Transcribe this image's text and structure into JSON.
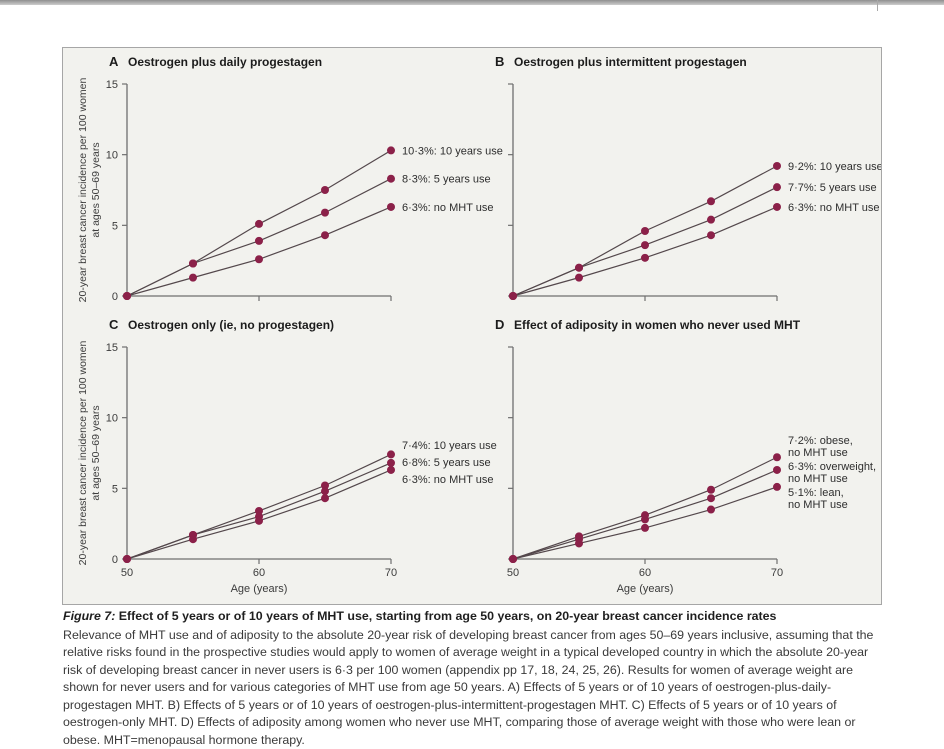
{
  "figure": {
    "x_axis_label": "Age (years)",
    "y_axis_label_lines": [
      "20-year breast cancer incidence per 100 women",
      "at ages 50–69 years"
    ]
  },
  "colors": {
    "marker": "#8b2149",
    "line": "#54484c",
    "axis": "#6f6f6f",
    "tick_text": "#3c3c3c",
    "label_text": "#2e2e2e",
    "title_text": "#1c1c1c",
    "panel_bg": "#f2f2ee"
  },
  "chart_data": [
    {
      "panel": "A",
      "type": "line",
      "title": "Oestrogen plus daily progestagen",
      "x": [
        50,
        55,
        60,
        65,
        70
      ],
      "xlim": [
        50,
        70
      ],
      "ylim": [
        0,
        15
      ],
      "xticks": [
        50,
        60,
        70
      ],
      "yticks": [
        0,
        5,
        10,
        15
      ],
      "grid": false,
      "xlabel": "Age (years)",
      "ylabel": "20-year breast cancer incidence per 100 women at ages 50–69 years",
      "series": [
        {
          "name": "10 years use",
          "label": [
            "10·3%: 10 years use"
          ],
          "values": [
            0,
            2.3,
            5.1,
            7.5,
            10.3
          ]
        },
        {
          "name": "5 years use",
          "label": [
            "8·3%: 5 years use"
          ],
          "values": [
            0,
            2.3,
            3.9,
            5.9,
            8.3
          ]
        },
        {
          "name": "no MHT use",
          "label": [
            "6·3%: no MHT use"
          ],
          "values": [
            0,
            1.3,
            2.6,
            4.3,
            6.3
          ]
        }
      ]
    },
    {
      "panel": "B",
      "type": "line",
      "title": "Oestrogen plus intermittent progestagen",
      "x": [
        50,
        55,
        60,
        65,
        70
      ],
      "xlim": [
        50,
        70
      ],
      "ylim": [
        0,
        15
      ],
      "xticks": [
        50,
        60,
        70
      ],
      "yticks": [
        0,
        5,
        10,
        15
      ],
      "grid": false,
      "xlabel": "Age (years)",
      "ylabel": "20-year breast cancer incidence per 100 women at ages 50–69 years",
      "series": [
        {
          "name": "10 years use",
          "label": [
            "9·2%: 10 years use"
          ],
          "values": [
            0,
            2.0,
            4.6,
            6.7,
            9.2
          ]
        },
        {
          "name": "5 years use",
          "label": [
            "7·7%: 5 years use"
          ],
          "values": [
            0,
            2.0,
            3.6,
            5.4,
            7.7
          ]
        },
        {
          "name": "no MHT use",
          "label": [
            "6·3%: no MHT use"
          ],
          "values": [
            0,
            1.3,
            2.7,
            4.3,
            6.3
          ]
        }
      ]
    },
    {
      "panel": "C",
      "type": "line",
      "title": "Oestrogen only (ie, no progestagen)",
      "x": [
        50,
        55,
        60,
        65,
        70
      ],
      "xlim": [
        50,
        70
      ],
      "ylim": [
        0,
        15
      ],
      "xticks": [
        50,
        60,
        70
      ],
      "yticks": [
        0,
        5,
        10,
        15
      ],
      "grid": false,
      "xlabel": "Age (years)",
      "ylabel": "20-year breast cancer incidence per 100 women at ages 50–69 years",
      "series": [
        {
          "name": "10 years use",
          "label": [
            "7·4%: 10 years use"
          ],
          "values": [
            0,
            1.7,
            3.4,
            5.2,
            7.4
          ]
        },
        {
          "name": "5 years use",
          "label": [
            "6·8%: 5 years use"
          ],
          "values": [
            0,
            1.7,
            3.0,
            4.8,
            6.8
          ]
        },
        {
          "name": "no MHT use",
          "label": [
            "6·3%: no MHT use"
          ],
          "values": [
            0,
            1.4,
            2.7,
            4.3,
            6.3
          ]
        }
      ]
    },
    {
      "panel": "D",
      "type": "line",
      "title": "Effect of adiposity in women who never used MHT",
      "x": [
        50,
        55,
        60,
        65,
        70
      ],
      "xlim": [
        50,
        70
      ],
      "ylim": [
        0,
        15
      ],
      "xticks": [
        50,
        60,
        70
      ],
      "yticks": [
        0,
        5,
        10,
        15
      ],
      "grid": false,
      "xlabel": "Age (years)",
      "ylabel": "20-year breast cancer incidence per 100 women at ages 50–69 years",
      "series": [
        {
          "name": "obese, no MHT use",
          "label": [
            "7·2%: obese,",
            "no MHT use"
          ],
          "values": [
            0,
            1.6,
            3.1,
            4.9,
            7.2
          ]
        },
        {
          "name": "overweight, no MHT use",
          "label": [
            "6·3%: overweight,",
            "no MHT use"
          ],
          "values": [
            0,
            1.4,
            2.8,
            4.3,
            6.3
          ]
        },
        {
          "name": "lean, no MHT use",
          "label": [
            "5·1%: lean,",
            "no MHT use"
          ],
          "values": [
            0,
            1.1,
            2.2,
            3.5,
            5.1
          ]
        }
      ]
    }
  ],
  "caption": {
    "label": "Figure 7:",
    "title": "Effect of 5 years or of 10 years of MHT use, starting from age 50 years, on 20-year breast cancer incidence rates",
    "body": "Relevance of MHT use and of adiposity to the absolute 20-year risk of developing breast cancer from ages 50–69 years inclusive, assuming that the relative risks found in the prospective studies would apply to women of average weight in a typical developed country in which the absolute 20-year risk of developing breast cancer in never users is 6·3 per 100 women (appendix pp 17, 18, 24, 25, 26). Results for women of average weight are shown for never users and for various categories of MHT use from age 50 years. A) Effects of 5 years or of 10 years of oestrogen-plus-daily-progestagen MHT. B) Effects of 5 years or of 10 years of oestrogen-plus-intermittent-progestagen MHT. C) Effects of 5 years or of 10 years of oestrogen-only MHT. D) Effects of adiposity among women who never use MHT, comparing those of average weight with those who were lean or obese. MHT=menopausal hormone therapy."
  }
}
